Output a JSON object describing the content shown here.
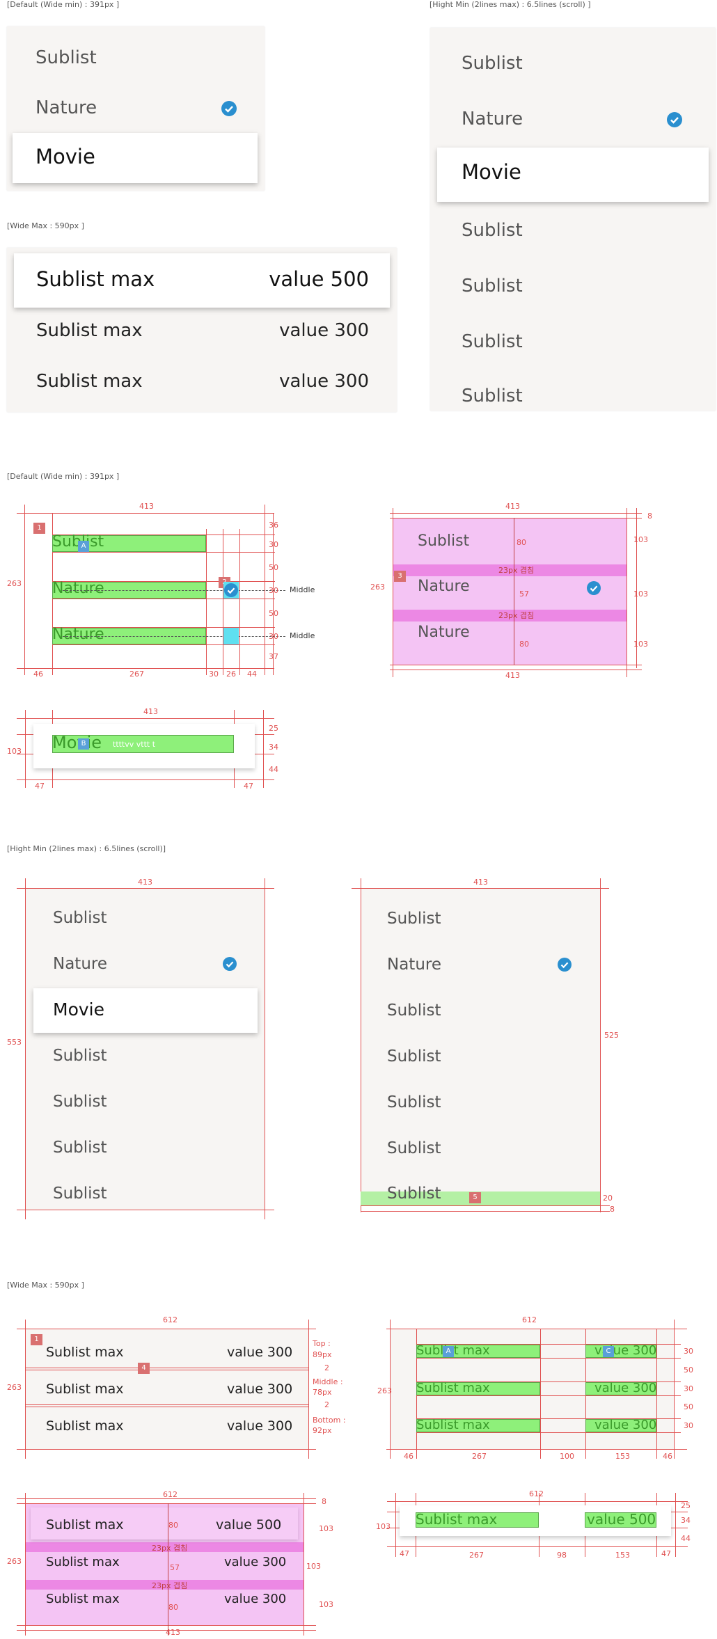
{
  "captions": {
    "default": "[Default (Wide min) : 391px ]",
    "hight": "[Hight Min (2lines max) : 6.5lines (scroll) ]",
    "wide": "[Wide Max : 590px ]",
    "default2": "[Default (Wide min) : 391px ]",
    "hight2": "[Hight Min (2lines max) : 6.5lines (scroll)]",
    "wide2": "[Wide Max : 590px ]"
  },
  "top_default": {
    "items": [
      "Sublist",
      "Nature",
      "Movie"
    ]
  },
  "top_hight": {
    "items": [
      "Sublist",
      "Nature",
      "Movie",
      "Sublist",
      "Sublist",
      "Sublist",
      "Sublist"
    ]
  },
  "top_wide": {
    "rows": [
      {
        "label": "Sublist max",
        "value": "value 500"
      },
      {
        "label": "Sublist max",
        "value": "value 300"
      },
      {
        "label": "Sublist max",
        "value": "value 300"
      }
    ]
  },
  "spec_default": {
    "items": [
      "Sublist",
      "Nature",
      "Nature"
    ],
    "tags": [
      "1",
      "2"
    ],
    "badge": "A",
    "w": "413",
    "h": "263",
    "right": [
      "36",
      "30",
      "50",
      "30",
      "50",
      "30",
      "37"
    ],
    "bottom": [
      "46",
      "267",
      "30",
      "26",
      "44"
    ],
    "middle": "Middle"
  },
  "spec_pink": {
    "items": [
      "Sublist",
      "Nature",
      "Nature"
    ],
    "tag": "3",
    "w_top": "413",
    "w_bot": "413",
    "h": "263",
    "overlap": "23px 겹침",
    "d80a": "80",
    "d57": "57",
    "d80b": "80",
    "r8": "8",
    "r103a": "103",
    "r103b": "103",
    "r103c": "103"
  },
  "spec_movie": {
    "item": "Movie",
    "badge": "B",
    "ghost": "ttttvv vttt t",
    "w": "413",
    "h": "103",
    "right": [
      "25",
      "34",
      "44"
    ],
    "left": "47",
    "rightb": "47"
  },
  "spec_h1": {
    "items": [
      "Sublist",
      "Nature",
      "Movie",
      "Sublist",
      "Sublist",
      "Sublist",
      "Sublist"
    ],
    "w": "413",
    "h": "553"
  },
  "spec_h2": {
    "items": [
      "Sublist",
      "Nature",
      "Sublist",
      "Sublist",
      "Sublist",
      "Sublist",
      "Sublist"
    ],
    "w": "413",
    "h": "525",
    "tag": "5",
    "b20": "20",
    "b8": "8"
  },
  "spec_w1": {
    "rows": [
      {
        "label": "Sublist max",
        "value": "value 300"
      },
      {
        "label": "Sublist max",
        "value": "value 300"
      },
      {
        "label": "Sublist max",
        "value": "value 300"
      }
    ],
    "w": "612",
    "h": "263",
    "tags": [
      "1",
      "4"
    ],
    "top": "Top :",
    "top2": "89px",
    "middle": "Middle :",
    "middle2": "78px",
    "bottom": "Bottom :",
    "bottom2": "92px",
    "two_a": "2",
    "two_b": "2"
  },
  "spec_w2": {
    "rows": [
      {
        "label": "Sublist max",
        "value": "value 300"
      },
      {
        "label": "Sublist max",
        "value": "value 300"
      },
      {
        "label": "Sublist max",
        "value": "value 300"
      }
    ],
    "w": "612",
    "h": "263",
    "badgeA": "A",
    "badgeC": "C",
    "right": [
      "30",
      "50",
      "30",
      "50",
      "30"
    ],
    "bottom": [
      "46",
      "267",
      "100",
      "153",
      "46"
    ]
  },
  "spec_w3": {
    "rows": [
      {
        "label": "Sublist max",
        "value": "value 500"
      },
      {
        "label": "Sublist max",
        "value": "value 300"
      },
      {
        "label": "Sublist max",
        "value": "value 300"
      }
    ],
    "w": "612",
    "w_bot": "413",
    "h": "263",
    "overlap": "23px 겹침",
    "d80a": "80",
    "d57": "57",
    "d80b": "80",
    "r8": "8",
    "r103a": "103",
    "r103b": "103",
    "r103c": "103"
  },
  "spec_w4": {
    "label": "Sublist max",
    "value": "value 500",
    "w": "612",
    "h": "103",
    "right": [
      "25",
      "34",
      "44"
    ],
    "bottom": [
      "47",
      "267",
      "98",
      "153",
      "47"
    ]
  },
  "colors": {
    "accent": "#2a8fcf",
    "guide": "#e05050",
    "green": "#8ef07a",
    "pink": "#f4c4f4"
  }
}
